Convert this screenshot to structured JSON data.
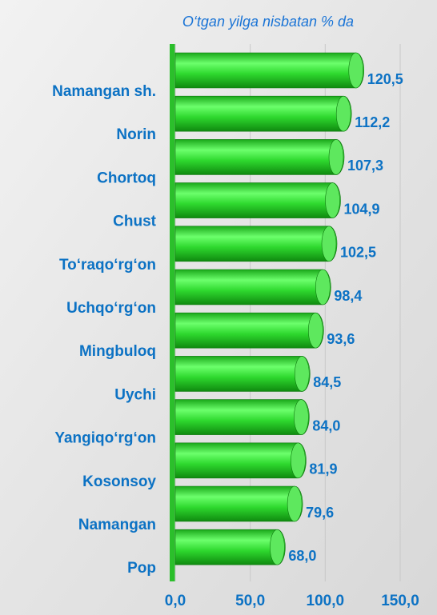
{
  "chart_data": {
    "type": "bar",
    "orientation": "horizontal",
    "subtitle": "O‘tgan yilga nisbatan % da",
    "categories": [
      "Namangan sh.",
      "Norin",
      "Chortoq",
      "Chust",
      "To‘raqo‘rg‘on",
      "Uchqo‘rg‘on",
      "Mingbuloq",
      "Uychi",
      "Yangiqo‘rg‘on",
      "Kosonsoy",
      "Namangan",
      "Pop"
    ],
    "values": [
      120.5,
      112.2,
      107.3,
      104.9,
      102.5,
      98.4,
      93.6,
      84.5,
      84.0,
      81.9,
      79.6,
      68.0
    ],
    "value_labels": [
      "120,5",
      "112,2",
      "107,3",
      "104,9",
      "102,5",
      "98,4",
      "93,6",
      "84,5",
      "84,0",
      "81,9",
      "79,6",
      "68,0"
    ],
    "color": "#2ed82e",
    "xlim": [
      0,
      150
    ],
    "xticks": [
      {
        "value": 0,
        "label": "0,0"
      },
      {
        "value": 50,
        "label": "50,0"
      },
      {
        "value": 100,
        "label": "100,0"
      },
      {
        "value": 150,
        "label": "150,0"
      }
    ],
    "grid": true
  }
}
